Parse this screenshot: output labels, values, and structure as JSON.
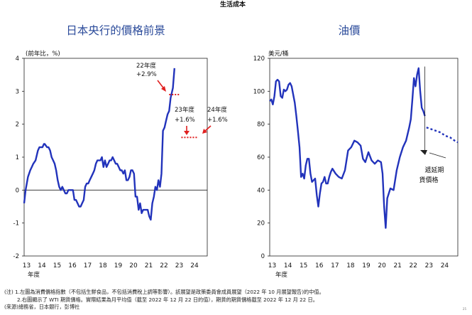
{
  "page": {
    "header": "生活成本",
    "page_number": "25"
  },
  "chart_data": [
    {
      "type": "line",
      "title": "日本央行的價格前景",
      "ylabel": "(前年比，%)",
      "ylim": [
        -2,
        4
      ],
      "yticks": [
        {
          "value": 4,
          "label": "4"
        },
        {
          "value": 3,
          "label": "3"
        },
        {
          "value": 2,
          "label": "2"
        },
        {
          "value": 1,
          "label": "1"
        },
        {
          "value": 0,
          "label": "0"
        },
        {
          "value": -1,
          "label": "-1"
        },
        {
          "value": -2,
          "label": "-2"
        }
      ],
      "xlim": [
        2013,
        2025
      ],
      "xticks": [
        "13",
        "14",
        "15",
        "16",
        "17",
        "18",
        "19",
        "20",
        "21",
        "22",
        "23",
        "24"
      ],
      "xlabel": "年度",
      "zero_line": true,
      "series": [
        {
          "name": "消費者物價指數（不包括生鮮食品）",
          "x": [
            2013.0,
            2013.1,
            2013.25,
            2013.4,
            2013.5,
            2013.6,
            2013.75,
            2013.9,
            2014.0,
            2014.1,
            2014.2,
            2014.3,
            2014.35,
            2014.5,
            2014.6,
            2014.7,
            2014.8,
            2014.9,
            2015.0,
            2015.1,
            2015.2,
            2015.3,
            2015.4,
            2015.5,
            2015.6,
            2015.7,
            2015.8,
            2015.9,
            2016.0,
            2016.1,
            2016.2,
            2016.3,
            2016.4,
            2016.5,
            2016.6,
            2016.7,
            2016.8,
            2016.9,
            2017.0,
            2017.1,
            2017.2,
            2017.3,
            2017.4,
            2017.5,
            2017.6,
            2017.7,
            2017.8,
            2017.9,
            2018.0,
            2018.1,
            2018.2,
            2018.3,
            2018.4,
            2018.5,
            2018.6,
            2018.7,
            2018.8,
            2018.9,
            2019.0,
            2019.1,
            2019.2,
            2019.3,
            2019.4,
            2019.5,
            2019.6,
            2019.7,
            2019.8,
            2019.9,
            2020.0,
            2020.1,
            2020.2,
            2020.3,
            2020.4,
            2020.5,
            2020.6,
            2020.7,
            2020.8,
            2020.9,
            2021.0,
            2021.1,
            2021.2,
            2021.3,
            2021.4,
            2021.5,
            2021.6,
            2021.7,
            2021.8,
            2021.9,
            2022.0,
            2022.1,
            2022.2,
            2022.3,
            2022.4,
            2022.5,
            2022.6,
            2022.75,
            2022.85
          ],
          "y": [
            -0.4,
            0.0,
            0.4,
            0.6,
            0.7,
            0.8,
            0.9,
            1.2,
            1.3,
            1.3,
            1.3,
            1.4,
            1.4,
            1.3,
            1.3,
            1.2,
            1.0,
            0.9,
            0.8,
            0.6,
            0.3,
            0.1,
            0.0,
            0.1,
            0.0,
            -0.1,
            -0.1,
            0.0,
            0.0,
            0.0,
            0.0,
            -0.3,
            -0.3,
            -0.4,
            -0.5,
            -0.5,
            -0.4,
            -0.3,
            0.1,
            0.2,
            0.2,
            0.3,
            0.4,
            0.5,
            0.6,
            0.8,
            0.9,
            0.9,
            0.9,
            1.0,
            0.7,
            0.9,
            0.7,
            0.8,
            0.9,
            0.9,
            1.0,
            0.9,
            0.8,
            0.8,
            0.7,
            0.6,
            0.6,
            0.5,
            0.6,
            0.3,
            0.3,
            0.4,
            0.6,
            0.6,
            0.5,
            -0.2,
            -0.2,
            -0.6,
            -0.4,
            -0.7,
            -0.6,
            -0.6,
            -0.6,
            -0.6,
            -0.8,
            -0.9,
            -0.4,
            -0.2,
            0.1,
            0.0,
            0.3,
            0.1,
            0.5,
            1.8,
            1.9,
            2.1,
            2.3,
            2.4,
            2.8,
            3.1,
            3.7
          ],
          "color": "#2233bb"
        }
      ],
      "forecasts": [
        {
          "fiscal_year": "22年度",
          "label": "22年度",
          "value_label": "+2.9%",
          "value": 2.9,
          "color": "#e02020"
        },
        {
          "fiscal_year": "23年度",
          "label": "23年度",
          "value_label": "+1.6%",
          "value": 1.6,
          "color": "#e02020"
        },
        {
          "fiscal_year": "24年度",
          "label": "24年度",
          "value_label": "+1.6%",
          "value": 1.6,
          "color": "#e02020"
        }
      ]
    },
    {
      "type": "line",
      "title": "油價",
      "ylabel": "美元/桶",
      "ylim": [
        0,
        120
      ],
      "yticks": [
        {
          "value": 120,
          "label": "120"
        },
        {
          "value": 100,
          "label": "100"
        },
        {
          "value": 80,
          "label": "80"
        },
        {
          "value": 60,
          "label": "60"
        },
        {
          "value": 40,
          "label": "40"
        },
        {
          "value": 20,
          "label": "20"
        },
        {
          "value": 0,
          "label": "0"
        }
      ],
      "xlim": [
        2013,
        2025
      ],
      "xticks": [
        "13",
        "14",
        "15",
        "16",
        "17",
        "18",
        "19",
        "20",
        "21",
        "22",
        "23",
        "24"
      ],
      "xlabel": "年度",
      "series": [
        {
          "name": "WTI 期貨價格",
          "x": [
            2013.0,
            2013.1,
            2013.2,
            2013.3,
            2013.4,
            2013.5,
            2013.6,
            2013.7,
            2013.8,
            2013.9,
            2014.0,
            2014.1,
            2014.2,
            2014.3,
            2014.4,
            2014.5,
            2014.6,
            2014.7,
            2014.8,
            2014.9,
            2015.0,
            2015.1,
            2015.2,
            2015.3,
            2015.4,
            2015.5,
            2015.6,
            2015.7,
            2015.8,
            2015.9,
            2016.0,
            2016.1,
            2016.2,
            2016.3,
            2016.4,
            2016.5,
            2016.6,
            2016.7,
            2016.8,
            2016.9,
            2017.0,
            2017.2,
            2017.4,
            2017.6,
            2017.8,
            2018.0,
            2018.2,
            2018.4,
            2018.6,
            2018.8,
            2018.95,
            2019.1,
            2019.3,
            2019.5,
            2019.7,
            2019.9,
            2020.1,
            2020.2,
            2020.3,
            2020.4,
            2020.5,
            2020.7,
            2020.9,
            2021.1,
            2021.3,
            2021.5,
            2021.7,
            2021.9,
            2022.0,
            2022.1,
            2022.2,
            2022.3,
            2022.4,
            2022.5,
            2022.6,
            2022.7,
            2022.8,
            2022.9
          ],
          "y": [
            94,
            95,
            92,
            97,
            106,
            107,
            106,
            97,
            96,
            101,
            100,
            101,
            104,
            105,
            103,
            98,
            93,
            85,
            76,
            66,
            48,
            50,
            47,
            55,
            59,
            59,
            50,
            45,
            46,
            47,
            37,
            30,
            38,
            44,
            45,
            48,
            44,
            44,
            48,
            51,
            53,
            50,
            48,
            47,
            52,
            64,
            66,
            70,
            69,
            67,
            59,
            57,
            63,
            58,
            56,
            58,
            57,
            50,
            30,
            17,
            35,
            41,
            40,
            52,
            60,
            66,
            70,
            78,
            83,
            95,
            108,
            103,
            110,
            114,
            100,
            90,
            88,
            85
          ],
          "color": "#2233bb"
        },
        {
          "name": "期貨價格",
          "x": [
            2023.0,
            2023.3,
            2023.6,
            2023.9,
            2024.2,
            2024.5,
            2024.8,
            2025.0
          ],
          "y": [
            78,
            77,
            76,
            75,
            73,
            72,
            70,
            69
          ],
          "color": "#2233bb",
          "dashed": true
        }
      ],
      "annotation": {
        "text_line1": "遞延期",
        "text_line2": "貨價格"
      }
    }
  ],
  "notes": {
    "line1": "(注) 1.左圖為消費價格指數（不包括生鮮食品，不包括消費稅上調等影響）。該展望是政策委員會成員展望（2022 年 10 月展望報告)的中值。",
    "line2": "2.右圖顯示了 WTI 期貨價格。實際結果為月平均值（截至 2022 年 12 月 22 日的值），期貨的期貨價格截至 2022 年 12 月 22 日。",
    "line3": "(來源)總務省，日本銀行，彭博社"
  }
}
